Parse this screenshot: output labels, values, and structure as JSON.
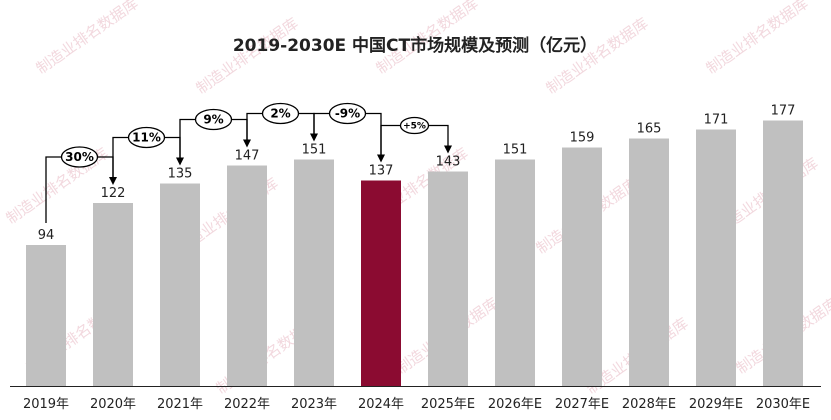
{
  "chart_data": {
    "type": "bar",
    "title": "2019-2030E 中国CT市场规模及预测（亿元）",
    "categories": [
      "2019年",
      "2020年",
      "2021年",
      "2022年",
      "2023年",
      "2024年",
      "2025年E",
      "2026年E",
      "2027年E",
      "2028年E",
      "2029年E",
      "2030年E"
    ],
    "values": [
      94,
      122,
      135,
      147,
      151,
      137,
      143,
      151,
      159,
      165,
      171,
      177
    ],
    "highlight_category": "2024年",
    "growth_annotations": [
      {
        "from": "2019年",
        "to": "2020年",
        "label": "30%"
      },
      {
        "from": "2020年",
        "to": "2021年",
        "label": "11%"
      },
      {
        "from": "2021年",
        "to": "2022年",
        "label": "9%"
      },
      {
        "from": "2022年",
        "to": "2023年",
        "label": "2%"
      },
      {
        "from": "2023年",
        "to": "2024年",
        "label": "-9%"
      },
      {
        "from": "2024年",
        "to": "2025年E",
        "label": "+5%"
      }
    ],
    "xlabel": "",
    "ylabel": "",
    "ylim": [
      0,
      190
    ],
    "grid": false,
    "legend": "none",
    "colors": {
      "bar": "#c0c0c0",
      "highlight_bar": "#8b0b31",
      "text": "#222222",
      "baseline": "#222222"
    }
  },
  "watermark": "制造业排名数据库"
}
